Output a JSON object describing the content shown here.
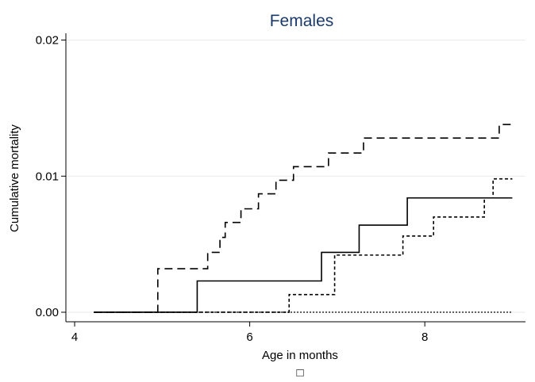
{
  "chart_data": {
    "type": "line",
    "title": "Females",
    "xlabel": "Age in months",
    "ylabel": "Cumulative mortality",
    "xlim": [
      3.9,
      9.15
    ],
    "ylim": [
      -0.0007,
      0.0205
    ],
    "xticks": [
      4,
      6,
      8
    ],
    "xtick_labels": [
      "4",
      "6",
      "8"
    ],
    "yticks": [
      0.0,
      0.01,
      0.02
    ],
    "ytick_labels": [
      "0.00",
      "0.01",
      "0.02"
    ],
    "grid": "horizontal",
    "legend_symbol": "□",
    "series": [
      {
        "style": "dashed",
        "x": [
          4.22,
          4.95,
          5.52,
          5.66,
          5.72,
          5.9,
          6.1,
          6.3,
          6.5,
          6.9,
          7.3,
          7.65,
          8.85,
          9.0
        ],
        "y": [
          0.0,
          0.0032,
          0.0044,
          0.0055,
          0.0066,
          0.0076,
          0.0087,
          0.0097,
          0.0107,
          0.0117,
          0.0128,
          0.0128,
          0.0138,
          0.0138
        ]
      },
      {
        "style": "solid",
        "x": [
          4.22,
          5.4,
          6.82,
          7.25,
          7.8,
          9.0
        ],
        "y": [
          0.0,
          0.0023,
          0.0044,
          0.0064,
          0.0084,
          0.0084
        ]
      },
      {
        "style": "short-dashed",
        "x": [
          4.22,
          6.45,
          6.97,
          7.75,
          8.1,
          8.68,
          8.78,
          9.0
        ],
        "y": [
          0.0,
          0.0013,
          0.0042,
          0.0056,
          0.007,
          0.0084,
          0.0098,
          0.0098
        ]
      },
      {
        "style": "dotted",
        "x": [
          4.22,
          9.0
        ],
        "y": [
          0.0,
          0.0
        ]
      }
    ],
    "colors": {
      "title": "#1a3a6b",
      "lines": "#000000",
      "grid": "#eaeaea"
    }
  }
}
